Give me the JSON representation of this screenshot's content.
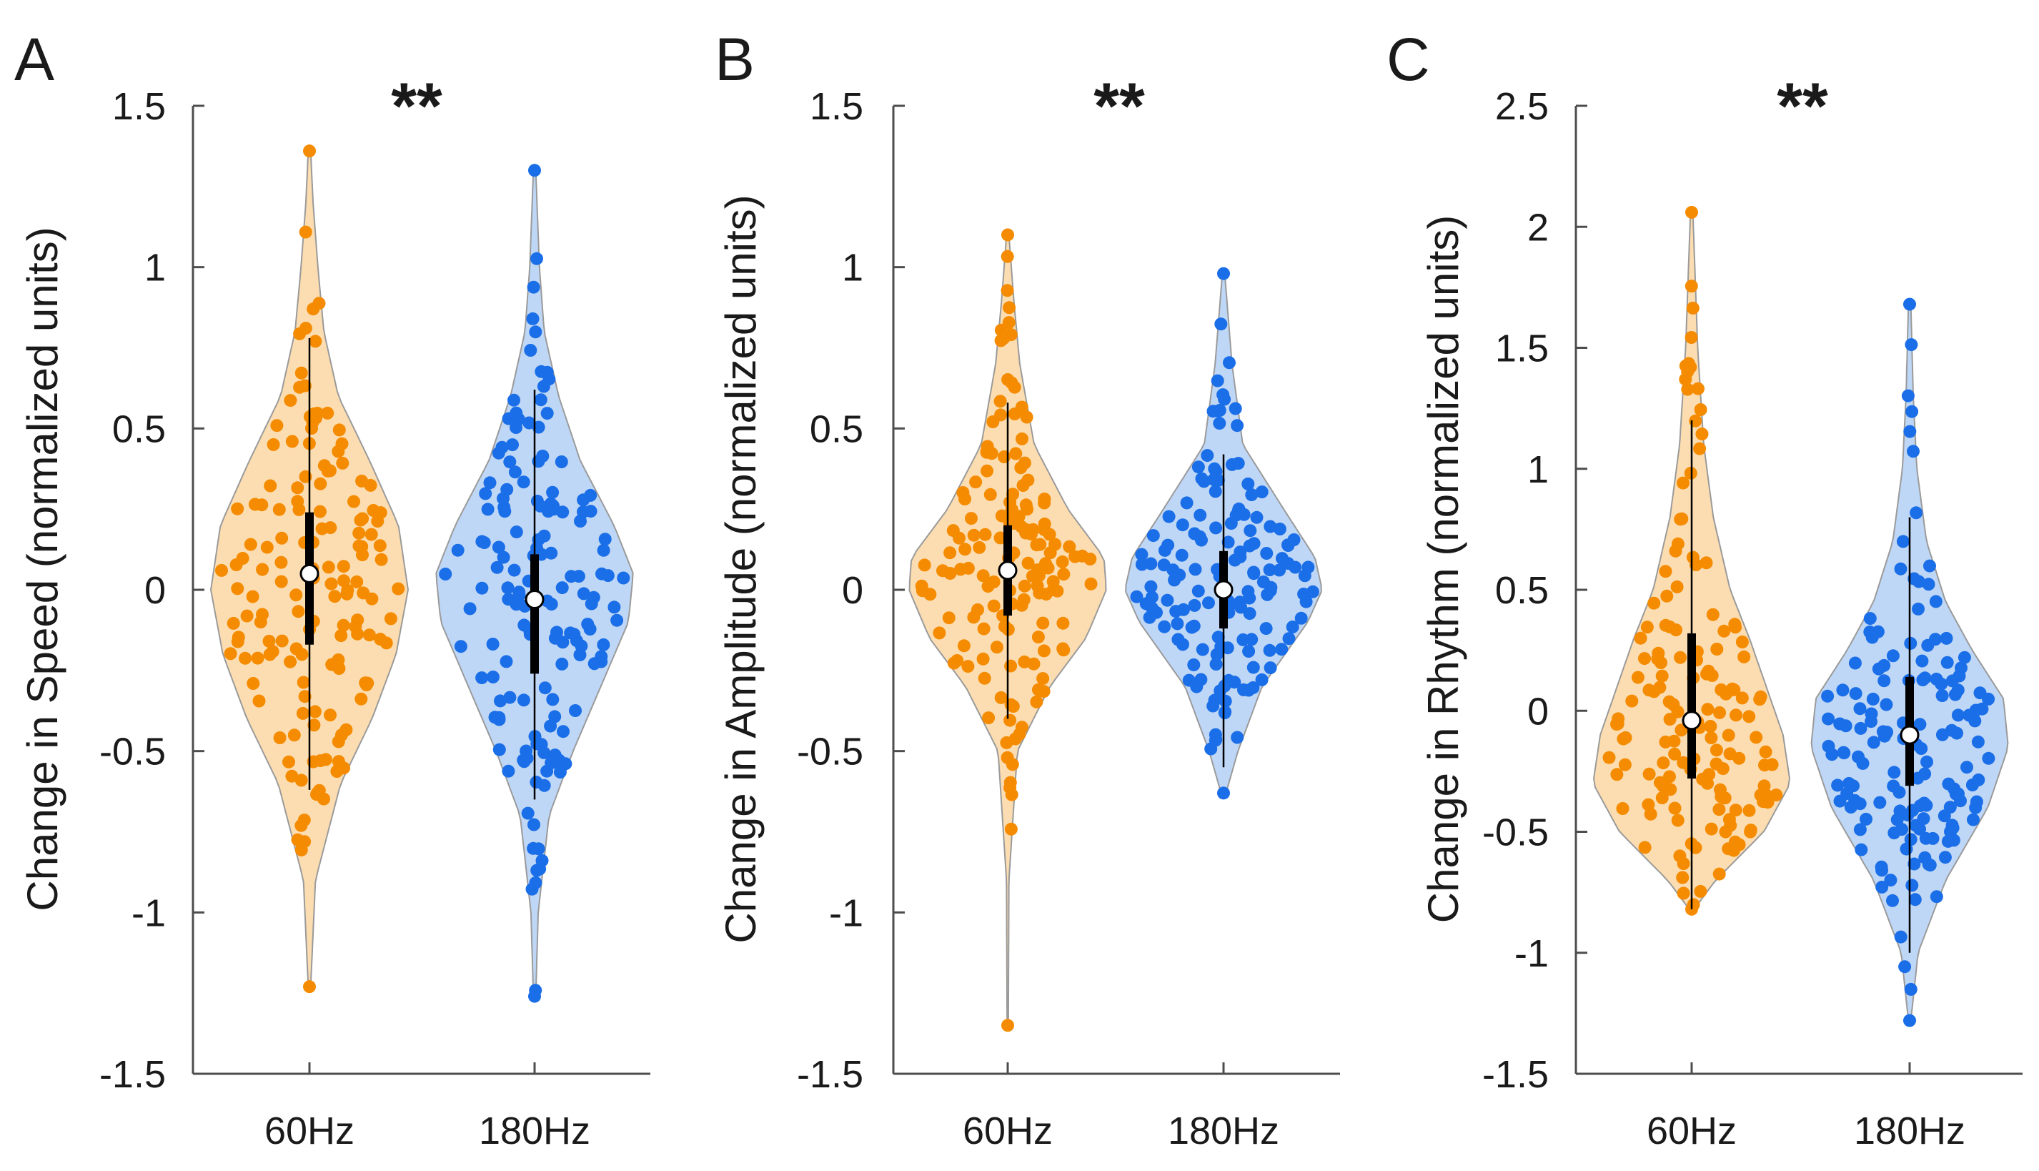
{
  "figure": {
    "colors": {
      "hz60": "#f58b00",
      "hz180": "#1a6ee8",
      "hz60_fill": "#fcd9a8",
      "hz180_fill": "#b8d3f5",
      "axis": "#4d4d4d"
    }
  },
  "chart_data": [
    {
      "type": "violin",
      "panel_label": "A",
      "significance": "**",
      "ylabel": "Change in Speed (normalized units)",
      "ylim": [
        -1.5,
        1.5
      ],
      "yticks": [
        1.5,
        1,
        0.5,
        0,
        -0.5,
        -1,
        -1.5
      ],
      "ytick_labels": [
        "1.5",
        "1",
        "0.5",
        "0",
        "-0.5",
        "-1",
        "-1.5"
      ],
      "categories": [
        "60Hz",
        "180Hz"
      ],
      "series": [
        {
          "name": "60Hz",
          "median": 0.05,
          "q1": -0.17,
          "q3": 0.24,
          "whisker_low": -0.62,
          "whisker_high": 0.78,
          "min": -1.23,
          "max": 1.36,
          "density": [
            [
              -1.23,
              0.01
            ],
            [
              -0.9,
              0.05
            ],
            [
              -0.6,
              0.26
            ],
            [
              -0.4,
              0.52
            ],
            [
              -0.2,
              0.72
            ],
            [
              0,
              0.82
            ],
            [
              0.2,
              0.74
            ],
            [
              0.4,
              0.5
            ],
            [
              0.6,
              0.24
            ],
            [
              0.8,
              0.12
            ],
            [
              1.0,
              0.07
            ],
            [
              1.2,
              0.03
            ],
            [
              1.36,
              0.01
            ]
          ]
        },
        {
          "name": "180Hz",
          "median": -0.03,
          "q1": -0.26,
          "q3": 0.11,
          "whisker_low": -0.65,
          "whisker_high": 0.62,
          "min": -1.26,
          "max": 1.3,
          "density": [
            [
              -1.26,
              0.01
            ],
            [
              -1.0,
              0.03
            ],
            [
              -0.7,
              0.12
            ],
            [
              -0.5,
              0.32
            ],
            [
              -0.3,
              0.55
            ],
            [
              -0.1,
              0.78
            ],
            [
              0.05,
              0.82
            ],
            [
              0.2,
              0.66
            ],
            [
              0.4,
              0.38
            ],
            [
              0.6,
              0.2
            ],
            [
              0.8,
              0.08
            ],
            [
              1.0,
              0.04
            ],
            [
              1.3,
              0.01
            ]
          ]
        }
      ]
    },
    {
      "type": "violin",
      "panel_label": "B",
      "significance": "**",
      "ylabel": "Change in Amplitude (normalized units)",
      "ylim": [
        -1.5,
        1.5
      ],
      "yticks": [
        1.5,
        1,
        0.5,
        0,
        -0.5,
        -1,
        -1.5
      ],
      "ytick_labels": [
        "1.5",
        "1",
        "0.5",
        "0",
        "-0.5",
        "-1",
        "-1.5"
      ],
      "categories": [
        "60Hz",
        "180Hz"
      ],
      "series": [
        {
          "name": "60Hz",
          "median": 0.06,
          "q1": -0.08,
          "q3": 0.2,
          "whisker_low": -0.4,
          "whisker_high": 0.58,
          "min": -1.35,
          "max": 1.1,
          "density": [
            [
              -1.35,
              0.005
            ],
            [
              -0.9,
              0.01
            ],
            [
              -0.5,
              0.08
            ],
            [
              -0.3,
              0.35
            ],
            [
              -0.15,
              0.65
            ],
            [
              0,
              0.82
            ],
            [
              0.1,
              0.8
            ],
            [
              0.25,
              0.5
            ],
            [
              0.45,
              0.22
            ],
            [
              0.7,
              0.1
            ],
            [
              0.9,
              0.05
            ],
            [
              1.1,
              0.01
            ]
          ]
        },
        {
          "name": "180Hz",
          "median": 0.0,
          "q1": -0.12,
          "q3": 0.12,
          "whisker_low": -0.55,
          "whisker_high": 0.42,
          "min": -0.63,
          "max": 0.98,
          "density": [
            [
              -0.63,
              0.02
            ],
            [
              -0.5,
              0.12
            ],
            [
              -0.3,
              0.32
            ],
            [
              -0.1,
              0.7
            ],
            [
              0,
              0.82
            ],
            [
              0.1,
              0.76
            ],
            [
              0.25,
              0.5
            ],
            [
              0.45,
              0.16
            ],
            [
              0.7,
              0.07
            ],
            [
              0.98,
              0.01
            ]
          ]
        }
      ]
    },
    {
      "type": "violin",
      "panel_label": "C",
      "significance": "**",
      "ylabel": "Change in Rhythm (normalized units)",
      "ylim": [
        -1.5,
        2.5
      ],
      "yticks": [
        2.5,
        2,
        1.5,
        1,
        0.5,
        0,
        -0.5,
        -1,
        -1.5
      ],
      "ytick_labels": [
        "2.5",
        "2",
        "1.5",
        "1",
        "0.5",
        "0",
        "-0.5",
        "-1",
        "-1.5"
      ],
      "categories": [
        "60Hz",
        "180Hz"
      ],
      "series": [
        {
          "name": "60Hz",
          "median": -0.04,
          "q1": -0.28,
          "q3": 0.32,
          "whisker_low": -0.82,
          "whisker_high": 1.2,
          "min": -0.82,
          "max": 2.06,
          "density": [
            [
              -0.82,
              0.02
            ],
            [
              -0.7,
              0.2
            ],
            [
              -0.5,
              0.6
            ],
            [
              -0.3,
              0.82
            ],
            [
              -0.1,
              0.76
            ],
            [
              0.1,
              0.62
            ],
            [
              0.3,
              0.48
            ],
            [
              0.5,
              0.32
            ],
            [
              0.8,
              0.18
            ],
            [
              1.1,
              0.1
            ],
            [
              1.5,
              0.05
            ],
            [
              2.06,
              0.01
            ]
          ]
        },
        {
          "name": "180Hz",
          "median": -0.1,
          "q1": -0.31,
          "q3": 0.14,
          "whisker_low": -1.0,
          "whisker_high": 0.8,
          "min": -1.28,
          "max": 1.68,
          "density": [
            [
              -1.28,
              0.01
            ],
            [
              -1.0,
              0.07
            ],
            [
              -0.7,
              0.3
            ],
            [
              -0.4,
              0.65
            ],
            [
              -0.15,
              0.82
            ],
            [
              0.05,
              0.78
            ],
            [
              0.25,
              0.52
            ],
            [
              0.45,
              0.3
            ],
            [
              0.7,
              0.14
            ],
            [
              1.0,
              0.06
            ],
            [
              1.3,
              0.03
            ],
            [
              1.68,
              0.01
            ]
          ]
        }
      ]
    }
  ]
}
